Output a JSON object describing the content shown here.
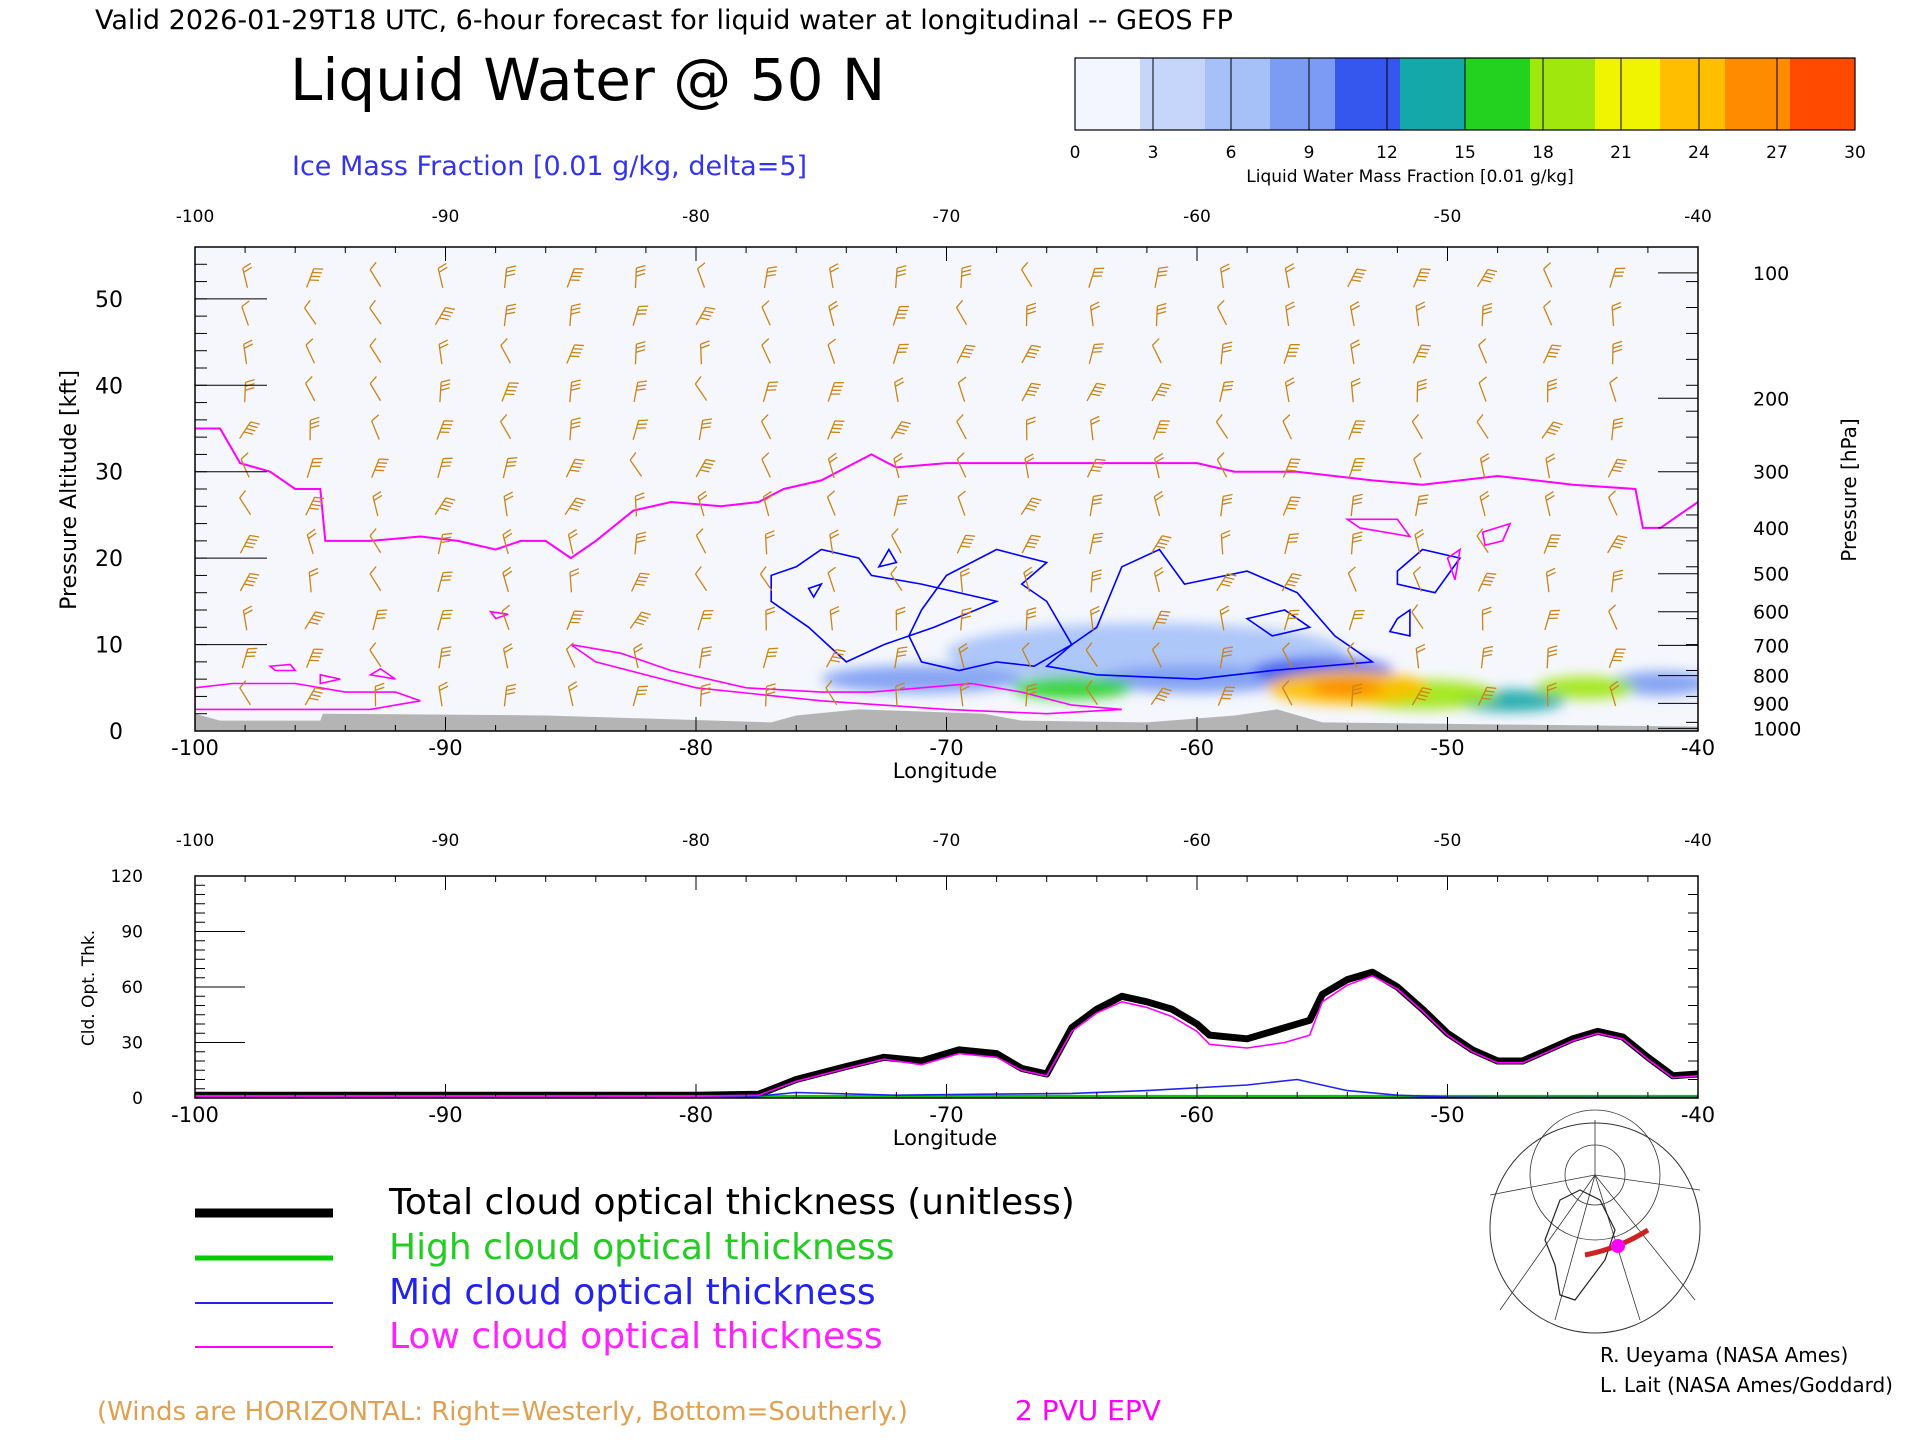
{
  "header": {
    "valid_line": "Valid 2026-01-29T18 UTC, 6-hour forecast for liquid water at longitudinal -- GEOS FP",
    "main_title": "Liquid Water @ 50 N",
    "ice_label": "Ice Mass Fraction [0.01 g/kg, delta=5]"
  },
  "colorbar": {
    "label": "Liquid Water Mass Fraction [0.01 g/kg]",
    "ticks": [
      "0",
      "3",
      "6",
      "9",
      "12",
      "15",
      "18",
      "21",
      "24",
      "27",
      "30"
    ],
    "colors": [
      "#f3f6ff",
      "#c6d6fb",
      "#a6c1f8",
      "#7b9cf2",
      "#3557ee",
      "#14a9a8",
      "#22d21f",
      "#9fe70c",
      "#f1f400",
      "#ffbe00",
      "#ff8c00",
      "#ff4a00"
    ]
  },
  "colors": {
    "wind_barbs": "#c98416",
    "epv_2pvu": "#ff00ff",
    "ice_contour": "#0000ff",
    "ground": "#b4b4b4",
    "total": "#000000",
    "high": "#00cc00",
    "mid": "#2222ee",
    "low": "#ff00ff"
  },
  "chart_data": [
    {
      "type": "heatmap",
      "title": "Liquid Water @ 50 N",
      "xlabel": "Longitude",
      "ylabel": "Pressure Altitude [kft]",
      "y2label": "Pressure [hPa]",
      "xlim": [
        -100,
        -40
      ],
      "ylim": [
        0,
        56
      ],
      "x_ticks": [
        "-100",
        "-90",
        "-80",
        "-70",
        "-60",
        "-50",
        "-40"
      ],
      "y_ticks": [
        "0",
        "10",
        "20",
        "30",
        "40",
        "50"
      ],
      "pressure_ticks": [
        {
          "hPa": "100",
          "kft": 53.0
        },
        {
          "hPa": "200",
          "kft": 38.5
        },
        {
          "hPa": "300",
          "kft": 30.0
        },
        {
          "hPa": "400",
          "kft": 23.5
        },
        {
          "hPa": "500",
          "kft": 18.2
        },
        {
          "hPa": "600",
          "kft": 13.8
        },
        {
          "hPa": "700",
          "kft": 9.9
        },
        {
          "hPa": "800",
          "kft": 6.4
        },
        {
          "hPa": "900",
          "kft": 3.2
        },
        {
          "hPa": "1000",
          "kft": 0.3
        }
      ],
      "liquid_water_blobs": [
        {
          "lon": -65,
          "kft": 5.0,
          "dlon": 2.4,
          "dkft": 1.3,
          "value": 16
        },
        {
          "lon": -60,
          "kft": 6.0,
          "dlon": 4.0,
          "dkft": 1.6,
          "value": 9
        },
        {
          "lon": -71,
          "kft": 6.0,
          "dlon": 4.0,
          "dkft": 1.6,
          "value": 7
        },
        {
          "lon": -62,
          "kft": 9.0,
          "dlon": 8.0,
          "dkft": 3.5,
          "value": 5
        },
        {
          "lon": -54,
          "kft": 5.0,
          "dlon": 3.2,
          "dkft": 2.0,
          "value": 24
        },
        {
          "lon": -51,
          "kft": 4.2,
          "dlon": 3.0,
          "dkft": 1.7,
          "value": 18
        },
        {
          "lon": -47.5,
          "kft": 3.5,
          "dlon": 2.2,
          "dkft": 1.3,
          "value": 14
        },
        {
          "lon": -44.5,
          "kft": 5.0,
          "dlon": 2.0,
          "dkft": 1.3,
          "value": 18
        },
        {
          "lon": -41.5,
          "kft": 5.5,
          "dlon": 2.0,
          "dkft": 1.4,
          "value": 8
        },
        {
          "lon": -55,
          "kft": 7.0,
          "dlon": 2.8,
          "dkft": 1.5,
          "value": 10
        }
      ],
      "epv_2pvu_tropopause": [
        [
          -100,
          35
        ],
        [
          -99,
          35
        ],
        [
          -98.2,
          31
        ],
        [
          -97,
          30
        ],
        [
          -96,
          28
        ],
        [
          -95,
          28
        ],
        [
          -94.8,
          22
        ],
        [
          -93,
          22
        ],
        [
          -91,
          22.5
        ],
        [
          -89.5,
          22
        ],
        [
          -88,
          21
        ],
        [
          -87,
          22
        ],
        [
          -86,
          22
        ],
        [
          -85,
          20
        ],
        [
          -84,
          22
        ],
        [
          -82.5,
          25.5
        ],
        [
          -81,
          26.5
        ],
        [
          -79,
          26
        ],
        [
          -77.5,
          26.5
        ],
        [
          -76.5,
          28
        ],
        [
          -75,
          29
        ],
        [
          -74,
          30.5
        ],
        [
          -73,
          32
        ],
        [
          -72,
          30.5
        ],
        [
          -70,
          31
        ],
        [
          -65,
          31
        ],
        [
          -60,
          31
        ],
        [
          -58.5,
          30
        ],
        [
          -56,
          30
        ],
        [
          -53,
          29
        ],
        [
          -51,
          28.5
        ],
        [
          -48,
          29.5
        ],
        [
          -45,
          28.5
        ],
        [
          -42.5,
          28
        ],
        [
          -42.2,
          23.5
        ],
        [
          -41.5,
          23.5
        ],
        [
          -40,
          26.5
        ]
      ],
      "epv_low_contours": [
        [
          [
            -100,
            5
          ],
          [
            -98.5,
            5.5
          ],
          [
            -96,
            5.5
          ],
          [
            -94,
            4.5
          ],
          [
            -92,
            4.5
          ],
          [
            -91,
            3.5
          ],
          [
            -93,
            2.5
          ],
          [
            -97,
            2.5
          ],
          [
            -100,
            2.5
          ]
        ],
        [
          [
            -85,
            10
          ],
          [
            -83,
            9
          ],
          [
            -81,
            7
          ],
          [
            -78,
            5
          ],
          [
            -75,
            4.5
          ],
          [
            -73,
            4.5
          ],
          [
            -71,
            5
          ],
          [
            -69,
            5.5
          ],
          [
            -67,
            4.5
          ],
          [
            -65,
            3
          ],
          [
            -63,
            2.5
          ],
          [
            -66,
            2
          ],
          [
            -70,
            2.5
          ],
          [
            -75,
            3.5
          ],
          [
            -80,
            5
          ],
          [
            -84,
            8
          ]
        ],
        [
          [
            -96.8,
            7
          ],
          [
            -96,
            7
          ],
          [
            -96.2,
            7.7
          ],
          [
            -97,
            7.5
          ]
        ],
        [
          [
            -95,
            5.5
          ],
          [
            -94.2,
            6
          ],
          [
            -95,
            6.5
          ]
        ],
        [
          [
            -93,
            6.5
          ],
          [
            -92,
            6
          ],
          [
            -92.6,
            7.2
          ]
        ],
        [
          [
            -88,
            13
          ],
          [
            -87.5,
            13.5
          ],
          [
            -88.2,
            13.8
          ]
        ],
        [
          [
            -53.5,
            23.5
          ],
          [
            -51.5,
            22.5
          ],
          [
            -52,
            24.5
          ],
          [
            -54,
            24.5
          ]
        ],
        [
          [
            -50,
            20
          ],
          [
            -49.5,
            21
          ],
          [
            -49.7,
            17.5
          ]
        ],
        [
          [
            -48.6,
            23
          ],
          [
            -47.5,
            24
          ],
          [
            -47.8,
            22
          ],
          [
            -48.5,
            21.5
          ]
        ]
      ],
      "ice_contours": [
        [
          [
            -76,
            19
          ],
          [
            -75,
            21
          ],
          [
            -73.5,
            20
          ],
          [
            -73,
            18
          ],
          [
            -71,
            17
          ],
          [
            -68,
            15
          ],
          [
            -70.5,
            12
          ],
          [
            -72.5,
            10
          ],
          [
            -74,
            8
          ],
          [
            -75.5,
            12
          ],
          [
            -77,
            15
          ],
          [
            -77,
            18
          ]
        ],
        [
          [
            -71,
            14
          ],
          [
            -70,
            18
          ],
          [
            -68,
            21
          ],
          [
            -66,
            19.5
          ],
          [
            -67,
            17
          ],
          [
            -66,
            15
          ],
          [
            -65,
            10
          ],
          [
            -66.5,
            7.5
          ],
          [
            -68,
            8
          ],
          [
            -69.5,
            7
          ],
          [
            -71,
            8
          ],
          [
            -71.5,
            11
          ]
        ],
        [
          [
            -64,
            12
          ],
          [
            -63,
            19
          ],
          [
            -61.5,
            21
          ],
          [
            -60.5,
            17
          ],
          [
            -58,
            18.5
          ],
          [
            -56,
            16
          ],
          [
            -54.5,
            11
          ],
          [
            -53,
            8
          ],
          [
            -57,
            7
          ],
          [
            -60,
            6
          ],
          [
            -64,
            6.5
          ],
          [
            -66,
            7.5
          ],
          [
            -65,
            10
          ]
        ],
        [
          [
            -58,
            13
          ],
          [
            -56.5,
            14
          ],
          [
            -55.5,
            12
          ],
          [
            -57,
            11
          ]
        ],
        [
          [
            -52,
            18.5
          ],
          [
            -51,
            21
          ],
          [
            -49.5,
            20
          ],
          [
            -50.5,
            16
          ],
          [
            -52,
            17
          ]
        ],
        [
          [
            -52,
            13
          ],
          [
            -51.5,
            14
          ],
          [
            -51.5,
            11
          ],
          [
            -52.3,
            11.5
          ]
        ],
        [
          [
            -75.5,
            16.5
          ],
          [
            -75,
            17
          ],
          [
            -75.3,
            15.5
          ]
        ],
        [
          [
            -72.7,
            19
          ],
          [
            -72.3,
            21
          ],
          [
            -72,
            19.5
          ]
        ]
      ],
      "ground_kft": [
        [
          -100,
          2
        ],
        [
          -99,
          1.2
        ],
        [
          -95,
          1.2
        ],
        [
          -94.9,
          2
        ],
        [
          -86,
          1.8
        ],
        [
          -77,
          1
        ],
        [
          -76,
          1.8
        ],
        [
          -73.5,
          2.5
        ],
        [
          -68.5,
          2
        ],
        [
          -67,
          1.2
        ],
        [
          -62,
          1
        ],
        [
          -58.5,
          1.8
        ],
        [
          -56.8,
          2.5
        ],
        [
          -55,
          1
        ],
        [
          -40,
          0.5
        ]
      ]
    },
    {
      "type": "line",
      "xlabel": "Longitude",
      "ylabel": "Cld. Opt. Thk.",
      "xlim": [
        -100,
        -40
      ],
      "ylim": [
        0,
        120
      ],
      "x_ticks": [
        "-100",
        "-90",
        "-80",
        "-70",
        "-60",
        "-50",
        "-40"
      ],
      "y_ticks": [
        "0",
        "30",
        "60",
        "90",
        "120"
      ],
      "series": [
        {
          "name": "Total cloud optical thickness (unitless)",
          "key": "total",
          "x": [
            -100,
            -90,
            -80,
            -77.5,
            -76,
            -74,
            -72.5,
            -71,
            -69.5,
            -68,
            -67,
            -66,
            -65,
            -64,
            -63,
            -62,
            -61,
            -60,
            -59.5,
            -58,
            -56.5,
            -55.5,
            -55,
            -54,
            -53,
            -52,
            -51,
            -50,
            -49,
            -48,
            -47,
            -46,
            -45,
            -44,
            -43,
            -42,
            -41,
            -40
          ],
          "y": [
            1.5,
            1.5,
            1.5,
            2,
            10,
            17,
            22,
            20,
            26,
            24,
            16,
            13,
            38,
            48,
            55,
            52,
            48,
            40,
            34,
            32,
            38,
            42,
            56,
            64,
            68,
            60,
            48,
            35,
            26,
            20,
            20,
            26,
            32,
            36,
            33,
            22,
            12,
            13
          ]
        },
        {
          "name": "High cloud optical thickness",
          "key": "high",
          "x": [
            -100,
            -40
          ],
          "y": [
            0.3,
            0.3
          ]
        },
        {
          "name": "Mid cloud optical thickness",
          "key": "mid",
          "x": [
            -100,
            -78,
            -76,
            -72,
            -69,
            -65,
            -62,
            -58,
            -56,
            -54,
            -52,
            -50,
            -48,
            -40
          ],
          "y": [
            0.5,
            0.5,
            3,
            1.5,
            2,
            2.5,
            4,
            7,
            10,
            4,
            1.5,
            0.5,
            0.3,
            0.3
          ]
        },
        {
          "name": "Low cloud optical thickness",
          "key": "low",
          "x": [
            -100,
            -90,
            -80,
            -77.5,
            -76,
            -74,
            -72.5,
            -71,
            -69.5,
            -68,
            -67,
            -66,
            -65,
            -64,
            -63,
            -62,
            -61,
            -60,
            -59.5,
            -58,
            -56.5,
            -55.5,
            -55,
            -54,
            -53,
            -52,
            -51,
            -50,
            -49,
            -48,
            -47,
            -46,
            -45,
            -44,
            -43,
            -42,
            -41,
            -40
          ],
          "y": [
            1,
            1,
            1,
            1.5,
            9,
            16,
            21,
            18,
            24,
            22,
            15,
            12,
            36,
            46,
            52,
            49,
            44,
            36,
            29,
            27,
            30,
            34,
            52,
            61,
            66,
            59,
            47,
            34,
            25,
            19,
            19,
            25,
            31,
            35,
            32,
            21,
            11,
            12
          ]
        }
      ]
    }
  ],
  "legend": {
    "total": "Total cloud optical thickness (unitless)",
    "high": "High cloud optical thickness",
    "mid": "Mid cloud optical thickness",
    "low": "Low cloud optical thickness"
  },
  "footer": {
    "winds_note": "(Winds are HORIZONTAL: Right=Westerly, Bottom=Southerly.)",
    "epv_label": "2 PVU EPV",
    "credit1": "R. Ueyama (NASA Ames)",
    "credit2": "L. Lait (NASA Ames/Goddard)"
  }
}
